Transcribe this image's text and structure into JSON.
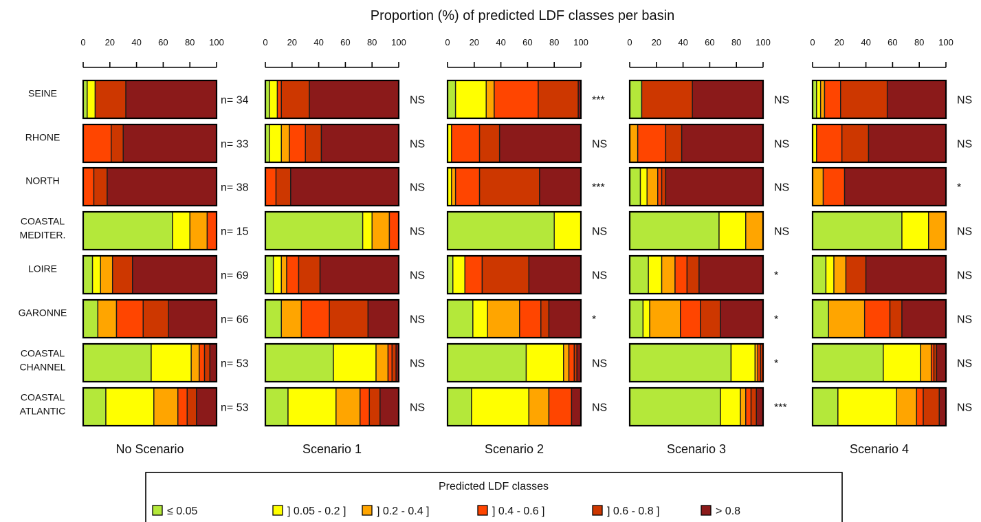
{
  "chart_data": {
    "type": "bar",
    "title": "Proportion (%) of predicted LDF classes per basin",
    "xlim": [
      0,
      100
    ],
    "x_ticks": [
      "0",
      "20",
      "40",
      "60",
      "80",
      "100"
    ],
    "categories": [
      [
        "SEINE"
      ],
      [
        "RHONE"
      ],
      [
        "NORTH"
      ],
      [
        "COASTAL",
        "MEDITER."
      ],
      [
        "LOIRE"
      ],
      [
        "GARONNE"
      ],
      [
        "COASTAL",
        "CHANNEL"
      ],
      [
        "COASTAL",
        "ATLANTIC"
      ]
    ],
    "n_labels": [
      "n= 34",
      "n= 33",
      "n= 38",
      "n= 15",
      "n= 69",
      "n= 66",
      "n= 53",
      "n= 53"
    ],
    "classes": [
      "≤ 0.05",
      "] 0.05 - 0.2 ]",
      "] 0.2 - 0.4 ]",
      "] 0.4 - 0.6 ]",
      "] 0.6 - 0.8 ]",
      "> 0.8"
    ],
    "colors": [
      "#b4e83a",
      "#ffff00",
      "#ffa500",
      "#ff4500",
      "#cd3700",
      "#8b1a1a"
    ],
    "legend_title": "Predicted LDF classes",
    "legend_position": "bottom",
    "panels": [
      {
        "name": "No Scenario",
        "significance": [],
        "values": [
          [
            3,
            6,
            0,
            0,
            23,
            68
          ],
          [
            0,
            0,
            0,
            21,
            9,
            70
          ],
          [
            0,
            0,
            0,
            8,
            10,
            82
          ],
          [
            67,
            13,
            13,
            7,
            0,
            0
          ],
          [
            7,
            6,
            9,
            0,
            15,
            63
          ],
          [
            11,
            0,
            14,
            20,
            19,
            36
          ],
          [
            51,
            30,
            6,
            4,
            4,
            5
          ],
          [
            17,
            36,
            18,
            7,
            7,
            15
          ]
        ]
      },
      {
        "name": "Scenario 1",
        "significance": [
          "NS",
          "NS",
          "NS",
          "NS",
          "NS",
          "NS",
          "NS",
          "NS"
        ],
        "values": [
          [
            3,
            6,
            0,
            3,
            21,
            67
          ],
          [
            3,
            9,
            6,
            12,
            12,
            58
          ],
          [
            0,
            0,
            0,
            8,
            11,
            81
          ],
          [
            73,
            7,
            13,
            7,
            0,
            0
          ],
          [
            6,
            6,
            4,
            9,
            16,
            59
          ],
          [
            12,
            0,
            15,
            21,
            29,
            23
          ],
          [
            51,
            32,
            9,
            3,
            3,
            2
          ],
          [
            17,
            36,
            18,
            7,
            8,
            14
          ]
        ]
      },
      {
        "name": "Scenario 2",
        "significance": [
          "***",
          "NS",
          "***",
          "NS",
          "NS",
          "*",
          "NS",
          "NS"
        ],
        "values": [
          [
            6,
            23,
            6,
            33,
            30,
            2
          ],
          [
            0,
            3,
            0,
            21,
            15,
            61
          ],
          [
            0,
            3,
            3,
            18,
            45,
            31
          ],
          [
            80,
            20,
            0,
            0,
            0,
            0
          ],
          [
            4,
            9,
            0,
            13,
            35,
            39
          ],
          [
            19,
            11,
            24,
            16,
            6,
            24
          ],
          [
            59,
            28,
            4,
            4,
            2,
            3
          ],
          [
            18,
            43,
            15,
            17,
            0,
            7
          ]
        ]
      },
      {
        "name": "Scenario 3",
        "significance": [
          "NS",
          "NS",
          "NS",
          "NS",
          "*",
          "*",
          "*",
          "***"
        ],
        "values": [
          [
            9,
            0,
            0,
            0,
            38,
            53
          ],
          [
            0,
            0,
            6,
            21,
            12,
            61
          ],
          [
            8,
            5,
            8,
            3,
            3,
            73
          ],
          [
            67,
            20,
            13,
            0,
            0,
            0
          ],
          [
            14,
            10,
            10,
            9,
            9,
            48
          ],
          [
            10,
            5,
            23,
            15,
            15,
            32
          ],
          [
            76,
            18,
            2,
            2,
            2,
            0
          ],
          [
            68,
            15,
            4,
            4,
            4,
            5
          ]
        ]
      },
      {
        "name": "Scenario 4",
        "significance": [
          "NS",
          "NS",
          "*",
          "NS",
          "NS",
          "NS",
          "NS",
          "NS"
        ],
        "values": [
          [
            3,
            3,
            3,
            12,
            35,
            44
          ],
          [
            0,
            3,
            0,
            19,
            20,
            58
          ],
          [
            0,
            0,
            8,
            16,
            0,
            76
          ],
          [
            67,
            20,
            13,
            0,
            0,
            0
          ],
          [
            10,
            6,
            9,
            0,
            15,
            60
          ],
          [
            12,
            0,
            27,
            19,
            9,
            33
          ],
          [
            53,
            28,
            8,
            2,
            2,
            7
          ],
          [
            19,
            44,
            15,
            5,
            12,
            5
          ]
        ]
      }
    ]
  }
}
